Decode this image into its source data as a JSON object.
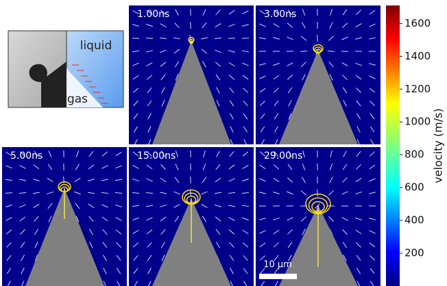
{
  "inset": {
    "liquid": "liquid",
    "gas": "gas"
  },
  "panels": [
    {
      "time": "1.00ns"
    },
    {
      "time": "3.00ns"
    },
    {
      "time": "5.00ns"
    },
    {
      "time": "15.00ns"
    },
    {
      "time": "29.00ns"
    }
  ],
  "scale_bar": "10 μm",
  "colorbar": {
    "label": "velocity (m/s)",
    "lim": [
      0,
      1710
    ],
    "ticks": [
      200,
      400,
      600,
      800,
      1000,
      1200,
      1400,
      1600
    ]
  }
}
